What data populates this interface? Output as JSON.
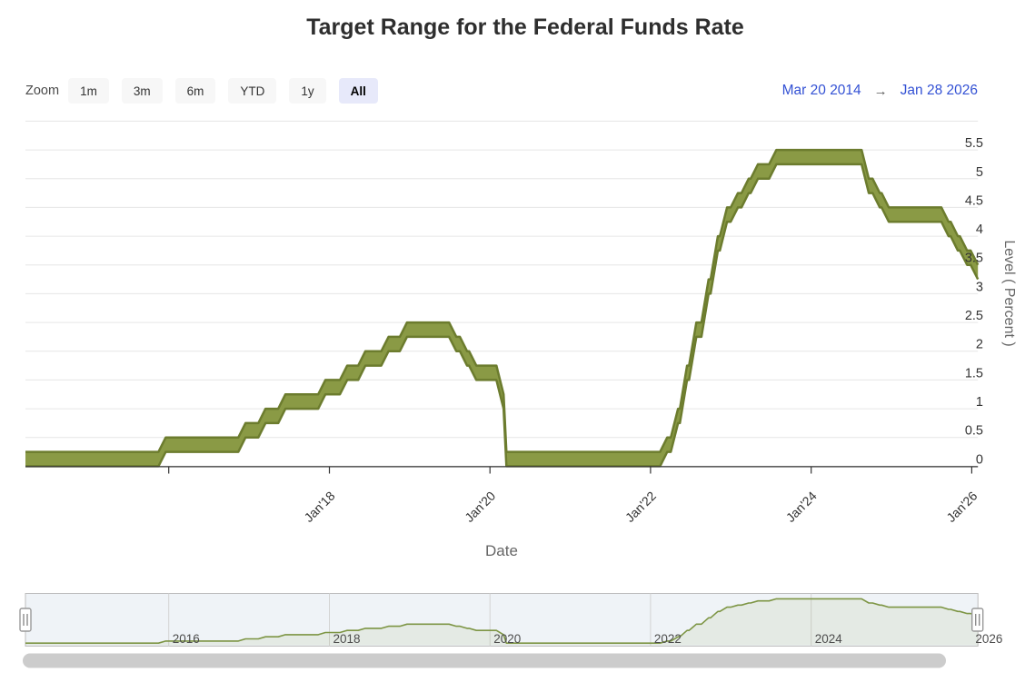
{
  "title": "Target Range for the Federal Funds Rate",
  "range_selector": {
    "zoom_label": "Zoom",
    "buttons": [
      "1m",
      "3m",
      "6m",
      "YTD",
      "1y",
      "All"
    ],
    "selected": "All",
    "date_from": "Mar 20 2014",
    "date_to": "Jan 28 2026",
    "arrow": "→"
  },
  "colors": {
    "band_fill": "#8a9a45",
    "band_edge": "#6c7c2e",
    "nav_line": "#7d9544",
    "nav_fill": "rgba(138,154,69,0.10)",
    "nav_bg": "#eff3f7",
    "nav_border": "#bdbdbd",
    "grid": "#e6e6e6",
    "axis": "#333333",
    "label_dark": "#333333",
    "label_gray": "#666666",
    "date_blue": "#3351d4",
    "scrollbar": "#cccccc",
    "handle_border": "#999999"
  },
  "chart_data": {
    "type": "arearange",
    "title": "Target Range for the Federal Funds Rate",
    "xlabel": "Date",
    "ylabel": "Level ( Percent )",
    "ylim": [
      0,
      6
    ],
    "ytick_step": 0.5,
    "ytick_labels": [
      "0",
      "0.5",
      "1",
      "1.5",
      "2",
      "2.5",
      "3",
      "3.5",
      "4",
      "4.5",
      "5",
      "5.5"
    ],
    "x_min_label": "Mar 20 2014",
    "x_max_label": "Jan 28 2026",
    "x_min": 2014.215,
    "x_max": 2026.077,
    "xticks": [
      {
        "x": 2016.0,
        "label": ""
      },
      {
        "x": 2018.0,
        "label": "Jan'18"
      },
      {
        "x": 2020.0,
        "label": "Jan'20"
      },
      {
        "x": 2022.0,
        "label": "Jan'22"
      },
      {
        "x": 2024.0,
        "label": "Jan'24"
      },
      {
        "x": 2026.0,
        "label": "Jan'26"
      }
    ],
    "steps": [
      {
        "date": "Mar 20 2014",
        "x": 2014.215,
        "low": 0.0,
        "high": 0.25
      },
      {
        "date": "Dec 17 2015",
        "x": 2015.962,
        "low": 0.25,
        "high": 0.5
      },
      {
        "date": "Dec 15 2016",
        "x": 2016.956,
        "low": 0.5,
        "high": 0.75
      },
      {
        "date": "Mar 16 2017",
        "x": 2017.205,
        "low": 0.75,
        "high": 1.0
      },
      {
        "date": "Jun 15 2017",
        "x": 2017.453,
        "low": 1.0,
        "high": 1.25
      },
      {
        "date": "Dec 14 2017",
        "x": 2017.951,
        "low": 1.25,
        "high": 1.5
      },
      {
        "date": "Mar 22 2018",
        "x": 2018.222,
        "low": 1.5,
        "high": 1.75
      },
      {
        "date": "Jun 14 2018",
        "x": 2018.449,
        "low": 1.75,
        "high": 2.0
      },
      {
        "date": "Sep 27 2018",
        "x": 2018.737,
        "low": 2.0,
        "high": 2.25
      },
      {
        "date": "Dec 20 2018",
        "x": 2018.967,
        "low": 2.25,
        "high": 2.5
      },
      {
        "date": "Aug 1 2019",
        "x": 2019.581,
        "low": 2.0,
        "high": 2.25
      },
      {
        "date": "Sep 19 2019",
        "x": 2019.715,
        "low": 1.75,
        "high": 2.0
      },
      {
        "date": "Oct 31 2019",
        "x": 2019.83,
        "low": 1.5,
        "high": 1.75
      },
      {
        "date": "Mar 3 2020",
        "x": 2020.17,
        "low": 1.0,
        "high": 1.25
      },
      {
        "date": "Mar 16 2020",
        "x": 2020.205,
        "low": 0.0,
        "high": 0.25
      },
      {
        "date": "Mar 17 2022",
        "x": 2022.208,
        "low": 0.25,
        "high": 0.5
      },
      {
        "date": "May 5 2022",
        "x": 2022.342,
        "low": 0.75,
        "high": 1.0
      },
      {
        "date": "Jun 16 2022",
        "x": 2022.455,
        "low": 1.5,
        "high": 1.75
      },
      {
        "date": "Jul 28 2022",
        "x": 2022.57,
        "low": 2.25,
        "high": 2.5
      },
      {
        "date": "Sep 22 2022",
        "x": 2022.723,
        "low": 3.0,
        "high": 3.25
      },
      {
        "date": "Nov 3 2022",
        "x": 2022.838,
        "low": 3.75,
        "high": 4.0
      },
      {
        "date": "Dec 15 2022",
        "x": 2022.953,
        "low": 4.25,
        "high": 4.5
      },
      {
        "date": "Feb 2 2023",
        "x": 2023.088,
        "low": 4.5,
        "high": 4.75
      },
      {
        "date": "Mar 23 2023",
        "x": 2023.222,
        "low": 4.75,
        "high": 5.0
      },
      {
        "date": "May 4 2023",
        "x": 2023.337,
        "low": 5.0,
        "high": 5.25
      },
      {
        "date": "Jul 27 2023",
        "x": 2023.567,
        "low": 5.25,
        "high": 5.5
      },
      {
        "date": "Sep 19 2024",
        "x": 2024.718,
        "low": 4.75,
        "high": 5.0
      },
      {
        "date": "Nov 8 2024",
        "x": 2024.855,
        "low": 4.5,
        "high": 4.75
      },
      {
        "date": "Dec 19 2024",
        "x": 2024.967,
        "low": 4.25,
        "high": 4.5
      },
      {
        "date": "Sep 18 2025",
        "x": 2025.712,
        "low": 4.0,
        "high": 4.25
      },
      {
        "date": "Oct 30 2025",
        "x": 2025.827,
        "low": 3.75,
        "high": 4.0
      },
      {
        "date": "Dec 11 2025",
        "x": 2025.942,
        "low": 3.5,
        "high": 3.75
      },
      {
        "date": "Jan 28 2026",
        "x": 2026.077,
        "low": 3.25,
        "high": 3.5
      }
    ],
    "navigator_years": [
      {
        "x": 2016,
        "label": "2016"
      },
      {
        "x": 2018,
        "label": "2018"
      },
      {
        "x": 2020,
        "label": "2020"
      },
      {
        "x": 2022,
        "label": "2022"
      },
      {
        "x": 2024,
        "label": "2024"
      },
      {
        "x": 2026,
        "label": "2026"
      }
    ],
    "legend": "off",
    "grid": "on"
  }
}
